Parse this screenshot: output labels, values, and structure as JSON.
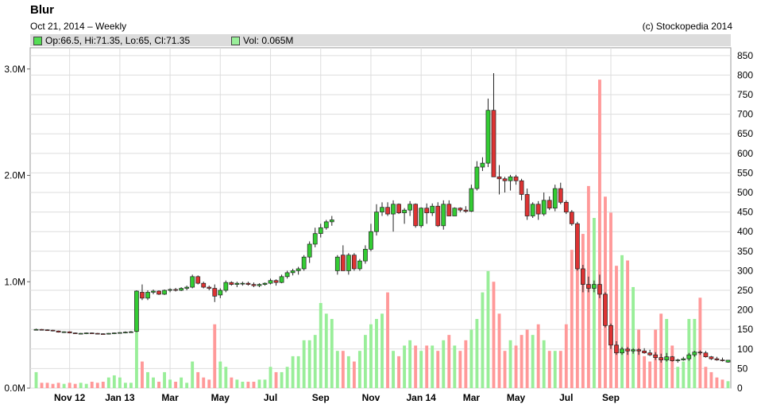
{
  "header": {
    "title": "Blur",
    "subtitle": "Oct 21, 2014 – Weekly",
    "copyright": "(c) Stockopedia 2014"
  },
  "legend": {
    "ohlc": "Op:66.5, Hi:71.35, Lo:65, Cl:71.35",
    "volume": "Vol: 0.065M"
  },
  "colors": {
    "up": "#33cc33",
    "down": "#dd3333",
    "vol_up": "#99ee99",
    "vol_down": "#ff9999",
    "grid": "#dddddd",
    "background": "#ffffff",
    "legend_bar": "#dcdcdc"
  },
  "chart_data": {
    "type": "candlestick",
    "price_axis": {
      "side": "right",
      "ylim": [
        0,
        870
      ],
      "ticks": [
        "0",
        "50",
        "100",
        "150",
        "200",
        "250",
        "300",
        "350",
        "400",
        "450",
        "500",
        "550",
        "600",
        "650",
        "700",
        "750",
        "800",
        "850"
      ]
    },
    "volume_axis": {
      "side": "left",
      "unit": "M",
      "ylim": [
        0,
        3.2
      ],
      "ticks": [
        "0.0M",
        "1.0M",
        "2.0M",
        "3.0M"
      ]
    },
    "x_ticks": [
      {
        "label": "Nov 12",
        "week": 6
      },
      {
        "label": "Jan 13",
        "week": 15
      },
      {
        "label": "Mar",
        "week": 24
      },
      {
        "label": "May",
        "week": 33
      },
      {
        "label": "Jul",
        "week": 42
      },
      {
        "label": "Sep",
        "week": 51
      },
      {
        "label": "Nov",
        "week": 60
      },
      {
        "label": "Jan 14",
        "week": 69
      },
      {
        "label": "Mar",
        "week": 78
      },
      {
        "label": "May",
        "week": 86
      },
      {
        "label": "Jul",
        "week": 95
      },
      {
        "label": "Sep",
        "week": 103
      }
    ],
    "grid": true,
    "candles": [
      [
        0,
        150,
        152,
        148,
        150,
        0.15
      ],
      [
        1,
        150,
        151,
        148,
        149,
        0.05
      ],
      [
        2,
        149,
        150,
        147,
        148,
        0.05
      ],
      [
        3,
        148,
        149,
        145,
        146,
        0.04
      ],
      [
        4,
        146,
        147,
        142,
        143,
        0.05
      ],
      [
        5,
        143,
        145,
        141,
        144,
        0.04
      ],
      [
        6,
        144,
        145,
        140,
        141,
        0.05
      ],
      [
        7,
        141,
        142,
        139,
        140,
        0.04
      ],
      [
        8,
        140,
        141,
        138,
        140,
        0.05
      ],
      [
        9,
        140,
        142,
        138,
        141,
        0.04
      ],
      [
        10,
        141,
        142,
        139,
        140,
        0.06
      ],
      [
        11,
        140,
        141,
        138,
        139,
        0.05
      ],
      [
        12,
        139,
        140,
        137,
        138,
        0.06
      ],
      [
        13,
        138,
        141,
        137,
        140,
        0.1
      ],
      [
        14,
        140,
        142,
        138,
        141,
        0.12
      ],
      [
        15,
        141,
        143,
        140,
        142,
        0.1
      ],
      [
        16,
        142,
        145,
        140,
        143,
        0.05
      ],
      [
        17,
        143,
        146,
        141,
        144,
        0.05
      ],
      [
        18,
        145,
        250,
        143,
        248,
        0.55
      ],
      [
        19,
        245,
        265,
        225,
        230,
        0.25
      ],
      [
        20,
        230,
        250,
        225,
        245,
        0.15
      ],
      [
        21,
        245,
        252,
        240,
        248,
        0.1
      ],
      [
        22,
        248,
        250,
        238,
        240,
        0.06
      ],
      [
        23,
        240,
        252,
        238,
        250,
        0.15
      ],
      [
        24,
        250,
        255,
        245,
        252,
        0.08
      ],
      [
        25,
        252,
        256,
        247,
        250,
        0.06
      ],
      [
        26,
        250,
        258,
        248,
        255,
        0.1
      ],
      [
        27,
        255,
        262,
        250,
        258,
        0.05
      ],
      [
        28,
        258,
        290,
        255,
        285,
        0.25
      ],
      [
        29,
        285,
        288,
        265,
        268,
        0.15
      ],
      [
        30,
        268,
        272,
        255,
        258,
        0.1
      ],
      [
        31,
        258,
        262,
        250,
        255,
        0.08
      ],
      [
        32,
        255,
        265,
        220,
        235,
        0.6
      ],
      [
        33,
        238,
        255,
        230,
        250,
        0.25
      ],
      [
        34,
        250,
        275,
        245,
        270,
        0.2
      ],
      [
        35,
        270,
        273,
        262,
        265,
        0.1
      ],
      [
        36,
        265,
        272,
        258,
        268,
        0.08
      ],
      [
        37,
        268,
        272,
        262,
        268,
        0.06
      ],
      [
        38,
        268,
        272,
        262,
        265,
        0.06
      ],
      [
        39,
        265,
        270,
        258,
        262,
        0.06
      ],
      [
        40,
        262,
        268,
        258,
        265,
        0.08
      ],
      [
        41,
        265,
        270,
        262,
        268,
        0.08
      ],
      [
        42,
        268,
        280,
        265,
        275,
        0.2
      ],
      [
        43,
        275,
        278,
        262,
        270,
        0.15
      ],
      [
        44,
        270,
        290,
        268,
        285,
        0.15
      ],
      [
        45,
        285,
        300,
        280,
        295,
        0.2
      ],
      [
        46,
        295,
        305,
        288,
        300,
        0.3
      ],
      [
        47,
        300,
        310,
        290,
        305,
        0.3
      ],
      [
        48,
        305,
        340,
        300,
        335,
        0.45
      ],
      [
        49,
        335,
        375,
        320,
        368,
        0.45
      ],
      [
        50,
        368,
        410,
        360,
        395,
        0.5
      ],
      [
        51,
        395,
        420,
        385,
        410,
        0.8
      ],
      [
        52,
        410,
        430,
        405,
        425,
        0.7
      ],
      [
        53,
        425,
        440,
        415,
        430,
        0.65
      ],
      [
        54,
        300,
        340,
        290,
        335,
        0.35
      ],
      [
        55,
        340,
        365,
        305,
        300,
        0.35
      ],
      [
        56,
        300,
        345,
        290,
        340,
        0.3
      ],
      [
        57,
        340,
        345,
        300,
        305,
        0.25
      ],
      [
        58,
        305,
        330,
        300,
        325,
        0.35
      ],
      [
        59,
        325,
        365,
        318,
        355,
        0.5
      ],
      [
        60,
        355,
        420,
        350,
        400,
        0.6
      ],
      [
        61,
        400,
        470,
        390,
        450,
        0.65
      ],
      [
        62,
        450,
        475,
        440,
        462,
        0.7
      ],
      [
        63,
        462,
        475,
        440,
        445,
        0.9
      ],
      [
        64,
        445,
        480,
        400,
        470,
        0.35
      ],
      [
        65,
        470,
        472,
        445,
        448,
        0.3
      ],
      [
        66,
        448,
        460,
        420,
        455,
        0.4
      ],
      [
        67,
        455,
        478,
        440,
        470,
        0.45
      ],
      [
        68,
        470,
        472,
        410,
        415,
        0.4
      ],
      [
        69,
        415,
        462,
        410,
        460,
        0.35
      ],
      [
        70,
        460,
        472,
        420,
        448,
        0.4
      ],
      [
        71,
        448,
        472,
        440,
        465,
        0.4
      ],
      [
        72,
        465,
        475,
        412,
        415,
        0.35
      ],
      [
        73,
        415,
        480,
        405,
        470,
        0.45
      ],
      [
        74,
        470,
        480,
        440,
        440,
        0.5
      ],
      [
        75,
        440,
        462,
        440,
        460,
        0.4
      ],
      [
        76,
        460,
        462,
        450,
        455,
        0.35
      ],
      [
        77,
        455,
        465,
        448,
        452,
        0.45
      ],
      [
        78,
        452,
        520,
        450,
        510,
        0.55
      ],
      [
        79,
        510,
        580,
        505,
        565,
        0.65
      ],
      [
        80,
        565,
        590,
        555,
        575,
        0.9
      ],
      [
        81,
        575,
        740,
        565,
        710,
        1.1
      ],
      [
        82,
        710,
        805,
        540,
        540,
        1.0
      ],
      [
        83,
        540,
        570,
        495,
        535,
        0.7
      ],
      [
        84,
        535,
        540,
        500,
        530,
        0.35
      ],
      [
        85,
        530,
        545,
        505,
        540,
        0.45
      ],
      [
        86,
        540,
        545,
        520,
        530,
        0.4
      ],
      [
        87,
        530,
        535,
        480,
        495,
        0.5
      ],
      [
        88,
        495,
        510,
        430,
        440,
        0.55
      ],
      [
        89,
        440,
        475,
        435,
        470,
        0.5
      ],
      [
        90,
        470,
        478,
        430,
        445,
        0.6
      ],
      [
        91,
        445,
        500,
        440,
        480,
        0.45
      ],
      [
        92,
        480,
        490,
        455,
        460,
        0.35
      ],
      [
        93,
        460,
        520,
        452,
        510,
        0.35
      ],
      [
        94,
        510,
        525,
        470,
        475,
        0.35
      ],
      [
        95,
        475,
        480,
        445,
        450,
        0.6
      ],
      [
        96,
        450,
        455,
        415,
        420,
        1.3
      ],
      [
        97,
        420,
        425,
        300,
        305,
        1.5
      ],
      [
        98,
        305,
        315,
        245,
        265,
        1.45
      ],
      [
        99,
        265,
        285,
        245,
        255,
        1.9
      ],
      [
        100,
        255,
        275,
        245,
        265,
        1.6
      ],
      [
        101,
        265,
        290,
        230,
        240,
        2.9
      ],
      [
        102,
        240,
        245,
        155,
        160,
        1.8
      ],
      [
        103,
        160,
        165,
        100,
        110,
        1.65
      ],
      [
        104,
        110,
        120,
        85,
        90,
        1.15
      ],
      [
        105,
        90,
        105,
        85,
        100,
        1.25
      ],
      [
        106,
        100,
        105,
        85,
        95,
        1.2
      ],
      [
        107,
        95,
        102,
        88,
        98,
        0.95
      ],
      [
        108,
        98,
        102,
        85,
        95,
        0.55
      ],
      [
        109,
        95,
        102,
        88,
        90,
        0.3
      ],
      [
        110,
        90,
        98,
        82,
        85,
        0.25
      ],
      [
        111,
        85,
        92,
        72,
        78,
        0.55
      ],
      [
        112,
        78,
        88,
        65,
        72,
        0.7
      ],
      [
        113,
        72,
        90,
        68,
        80,
        0.65
      ],
      [
        114,
        80,
        82,
        68,
        70,
        0.4
      ],
      [
        115,
        70,
        75,
        65,
        72,
        0.2
      ],
      [
        116,
        72,
        80,
        70,
        75,
        0.25
      ],
      [
        117,
        75,
        90,
        70,
        85,
        0.65
      ],
      [
        118,
        85,
        95,
        80,
        92,
        0.65
      ],
      [
        119,
        92,
        96,
        85,
        90,
        0.85
      ],
      [
        120,
        90,
        95,
        78,
        80,
        0.2
      ],
      [
        121,
        80,
        82,
        72,
        75,
        0.15
      ],
      [
        122,
        75,
        80,
        70,
        72,
        0.1
      ],
      [
        123,
        72,
        78,
        68,
        70,
        0.08
      ],
      [
        124,
        66.5,
        71.35,
        65,
        71.35,
        0.065
      ]
    ]
  }
}
